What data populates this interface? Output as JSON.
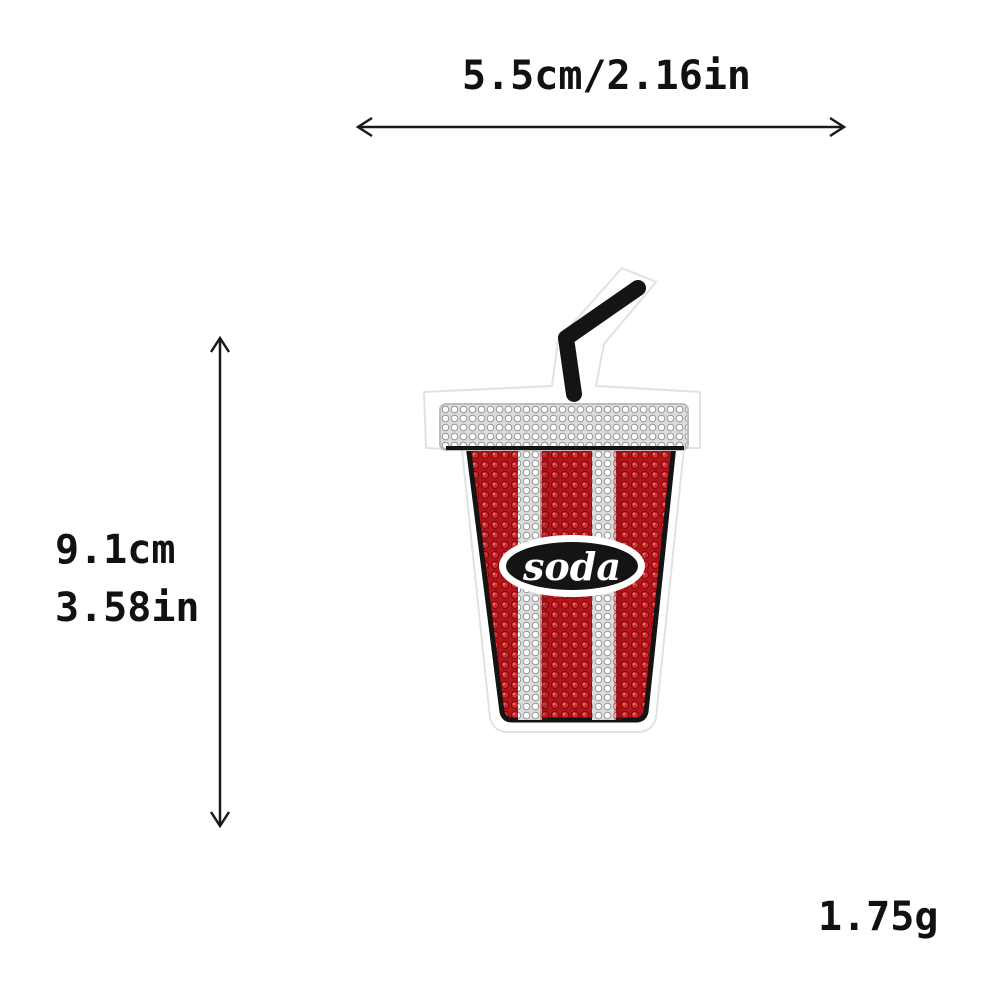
{
  "dimensions": {
    "width_text": "5.5cm/2.16in",
    "height_cm_text": "9.1cm",
    "height_in_text": "3.58in",
    "weight_text": "1.75g"
  },
  "product": {
    "cup_text": "soda"
  },
  "colors": {
    "cup_red": "#b5151a",
    "cup_dark_red": "#7d0d10",
    "stripe_white": "#f4f4f4",
    "outline_black": "#141414",
    "felt_border": "#ffffff",
    "arrow": "#1a1a1a"
  }
}
